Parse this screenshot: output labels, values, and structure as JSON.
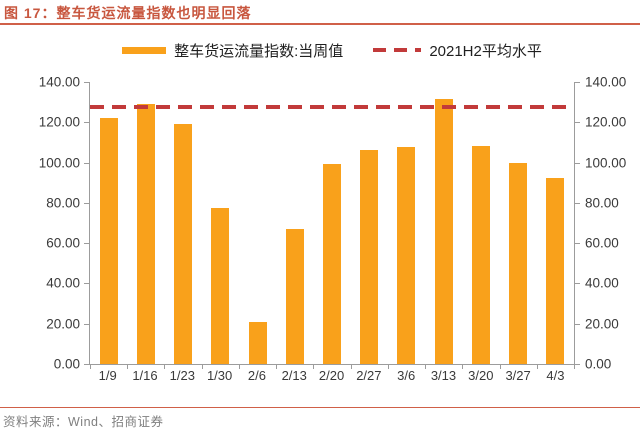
{
  "figure": {
    "title": "图 17：整车货运流量指数也明显回落",
    "source": "资料来源：Wind、招商证券"
  },
  "legend": {
    "bar_series_label": "整车货运流量指数:当周值",
    "avg_line_label": "2021H2平均水平"
  },
  "colors": {
    "bar": "#F9A11B",
    "average_line": "#C23A3A",
    "title_text": "#C8573F",
    "rule_line": "#D06048",
    "axis_line": "#9C9C9C",
    "axis_text": "#3A3A3A",
    "source_text": "#7F7F7F"
  },
  "chart_data": {
    "type": "bar",
    "title": "整车货运流量指数也明显回落",
    "categories": [
      "1/9",
      "1/16",
      "1/23",
      "1/30",
      "2/6",
      "2/13",
      "2/20",
      "2/27",
      "3/6",
      "3/13",
      "3/20",
      "3/27",
      "4/3"
    ],
    "series": [
      {
        "name": "整车货运流量指数:当周值",
        "type": "bar",
        "values": [
          122.0,
          129.3,
          119.0,
          77.6,
          20.9,
          67.2,
          99.3,
          106.2,
          107.9,
          131.5,
          108.4,
          99.7,
          92.2
        ]
      },
      {
        "name": "2021H2平均水平",
        "type": "dashed_hline",
        "value": 127.7
      }
    ],
    "ylim": [
      0,
      140
    ],
    "yticks": [
      "140.00",
      "120.00",
      "100.00",
      "80.00",
      "60.00",
      "40.00",
      "20.00",
      "0.00"
    ],
    "dual_y_axis": true,
    "grid": false,
    "legend_position": "top-center"
  }
}
